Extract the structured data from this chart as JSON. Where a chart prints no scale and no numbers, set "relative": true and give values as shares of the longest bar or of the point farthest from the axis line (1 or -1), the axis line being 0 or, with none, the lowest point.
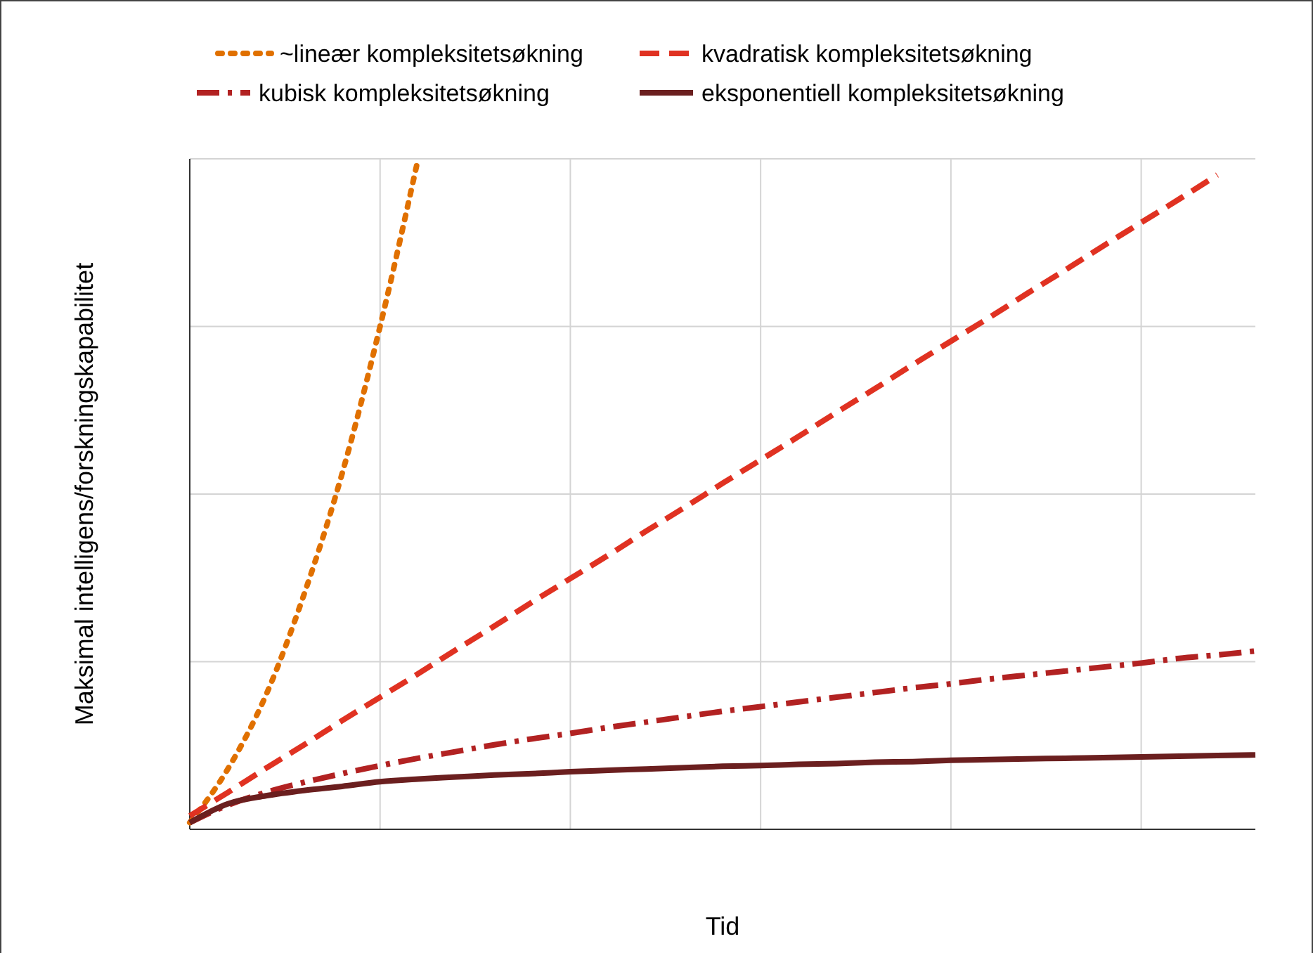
{
  "chart_data": {
    "type": "line",
    "relative": true,
    "xlabel": "Tid",
    "ylabel": "Maksimal intelligens/forskningskapabilitet",
    "grid": true,
    "legend": "top",
    "marker": "none",
    "categories": [
      null,
      null,
      null,
      null,
      null,
      null,
      null,
      null,
      null,
      null,
      null,
      null,
      null,
      null,
      null,
      null,
      null,
      null,
      null,
      null,
      null,
      null,
      null,
      null,
      null,
      null,
      null,
      null,
      null
    ],
    "series": [
      {
        "name": "~lineær kompleksitetsøkning",
        "color": "#e07000",
        "line_style": "dotted",
        "values": [
          0.01,
          0.09,
          0.2,
          0.35,
          0.53,
          0.75,
          1.0,
          null,
          null,
          null,
          null,
          null,
          null,
          null,
          null,
          null,
          null,
          null,
          null,
          null,
          null,
          null,
          null,
          null,
          null,
          null,
          null,
          null,
          null
        ]
      },
      {
        "name": "kvadratisk kompleksitetsøkning",
        "color": "#e03222",
        "line_style": "dashed",
        "values": [
          0.02,
          0.055,
          0.091,
          0.126,
          0.162,
          0.197,
          0.232,
          0.268,
          0.303,
          0.339,
          0.374,
          0.409,
          0.445,
          0.48,
          0.516,
          0.551,
          0.586,
          0.622,
          0.657,
          0.693,
          0.728,
          0.763,
          0.799,
          0.834,
          0.87,
          0.905,
          0.94,
          0.976,
          null
        ]
      },
      {
        "name": "kubisk kompleksitetsøkning",
        "color": "#b22222",
        "line_style": "dashdot",
        "values": [
          0.01,
          0.036,
          0.055,
          0.07,
          0.083,
          0.095,
          0.106,
          0.116,
          0.126,
          0.135,
          0.143,
          0.152,
          0.16,
          0.168,
          0.176,
          0.183,
          0.19,
          0.197,
          0.204,
          0.211,
          0.217,
          0.224,
          0.23,
          0.236,
          0.242,
          0.248,
          0.255,
          0.26,
          0.266
        ]
      },
      {
        "name": "eksponentiell kompleksitetsøkning",
        "color": "#6b1f1f",
        "line_style": "solid",
        "values": [
          0.01,
          0.038,
          0.05,
          0.058,
          0.064,
          0.071,
          0.075,
          0.078,
          0.081,
          0.083,
          0.086,
          0.088,
          0.09,
          0.092,
          0.094,
          0.095,
          0.097,
          0.098,
          0.1,
          0.101,
          0.103,
          0.104,
          0.105,
          0.106,
          0.107,
          0.108,
          0.109,
          0.11,
          0.111
        ]
      }
    ]
  }
}
